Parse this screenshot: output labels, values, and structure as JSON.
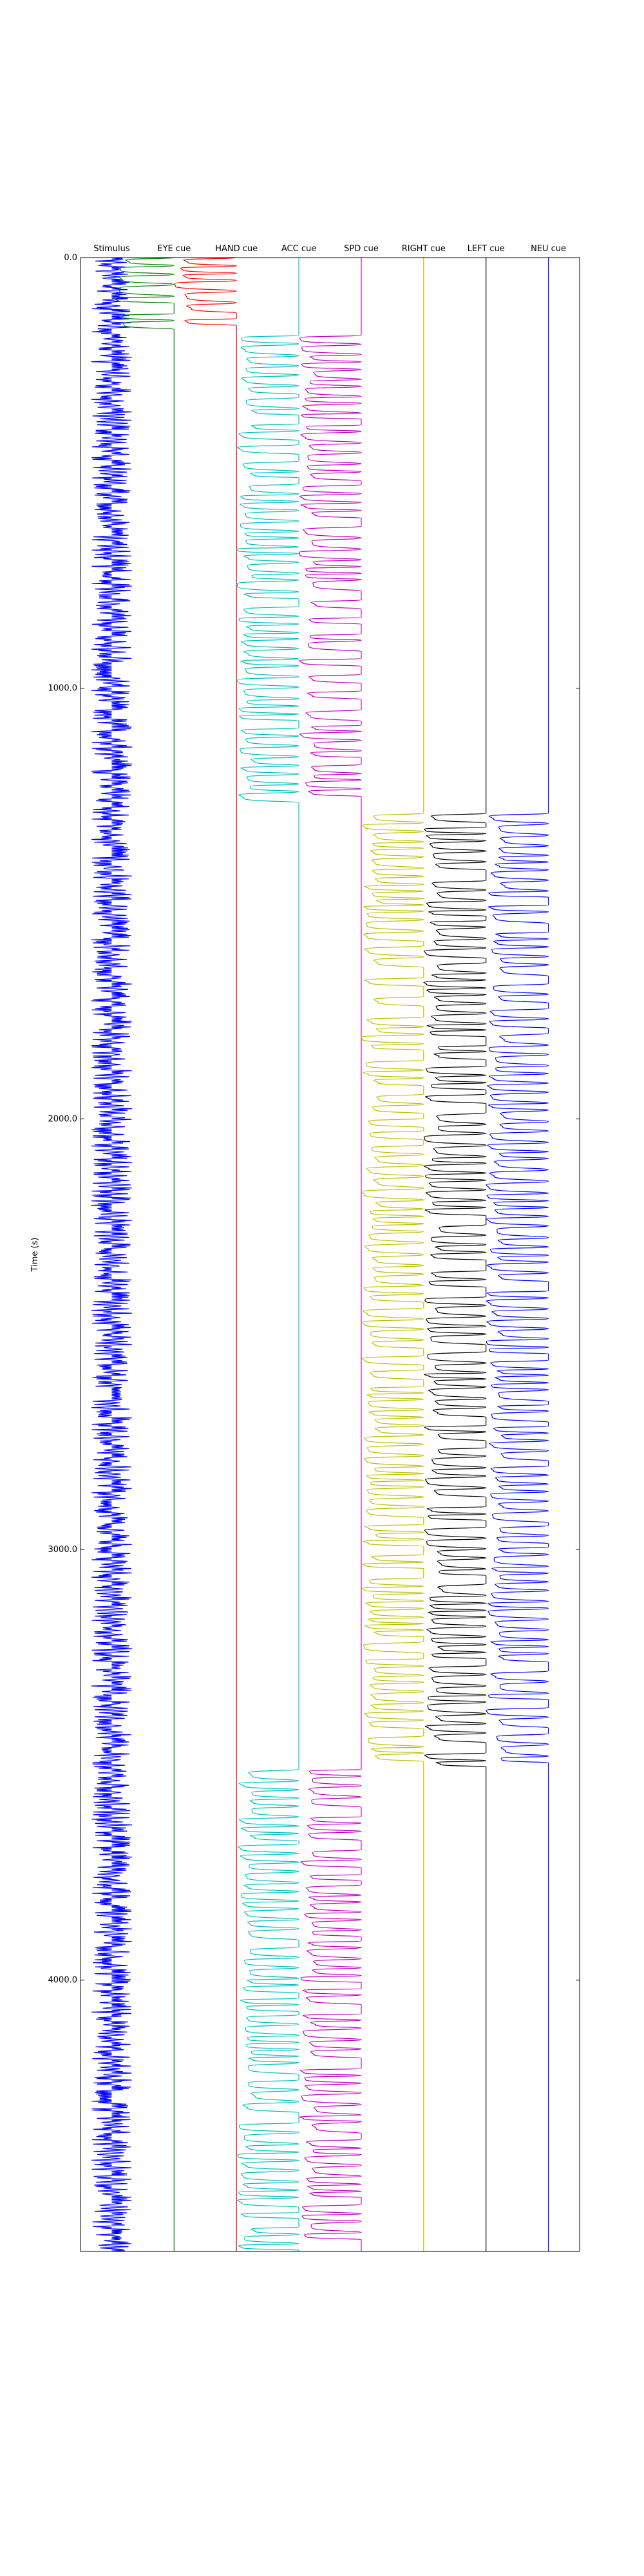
{
  "chart_data": {
    "type": "line",
    "ylabel": "Time (s)",
    "ylim": [
      0,
      4630
    ],
    "y_inverted": true,
    "yticks": [
      0,
      1000,
      2000,
      3000,
      4000
    ],
    "ytick_labels": [
      "0.0",
      "1000.0",
      "2000.0",
      "3000.0",
      "4000.0"
    ],
    "columns": [
      {
        "name": "Stimulus",
        "color": "#0000ff",
        "segments": [
          [
            0,
            4630
          ]
        ]
      },
      {
        "name": "EYE cue",
        "color": "#008000",
        "segments": [
          [
            0,
            180
          ]
        ]
      },
      {
        "name": "HAND cue",
        "color": "#ff0000",
        "segments": [
          [
            0,
            180
          ]
        ]
      },
      {
        "name": "ACC cue",
        "color": "#00bfbf",
        "segments": [
          [
            180,
            1290
          ],
          [
            3510,
            4630
          ]
        ]
      },
      {
        "name": "SPD cue",
        "color": "#bf00bf",
        "segments": [
          [
            180,
            1290
          ],
          [
            3510,
            4630
          ]
        ]
      },
      {
        "name": "RIGHT cue",
        "color": "#bfbf00",
        "segments": [
          [
            1290,
            3510
          ]
        ]
      },
      {
        "name": "LEFT cue",
        "color": "#000000",
        "segments": [
          [
            1290,
            3510
          ]
        ]
      },
      {
        "name": "NEU cue",
        "color": "#0000ff",
        "segments": [
          [
            1290,
            3510
          ]
        ]
      }
    ]
  }
}
